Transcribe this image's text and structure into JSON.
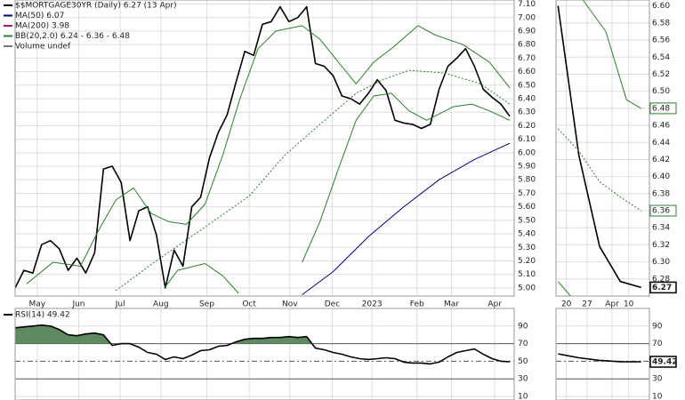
{
  "chart_data": [
    {
      "type": "line",
      "x": [
        0,
        1,
        2,
        3,
        4,
        5,
        6,
        7,
        8,
        9,
        10,
        11,
        12,
        13,
        14,
        15,
        16,
        17,
        18,
        19,
        20,
        21,
        22,
        23,
        24,
        25,
        26,
        27,
        28,
        29,
        30,
        31,
        32,
        33,
        34,
        35,
        36,
        37,
        38,
        39,
        40,
        41,
        42,
        43,
        44,
        45,
        46,
        47,
        48,
        49,
        50,
        51,
        52,
        53,
        54,
        55,
        56
      ],
      "xlim": [
        0,
        56.5
      ],
      "ylim": [
        4.94,
        7.13
      ],
      "xticks": [
        {
          "value": 2.5,
          "label": "May"
        },
        {
          "value": 7.2,
          "label": "Jun"
        },
        {
          "value": 11.9,
          "label": "Jul"
        },
        {
          "value": 16.5,
          "label": "Aug"
        },
        {
          "value": 21.7,
          "label": "Sep"
        },
        {
          "value": 26.5,
          "label": "Oct"
        },
        {
          "value": 31.1,
          "label": "Nov"
        },
        {
          "value": 35.9,
          "label": "Dec"
        },
        {
          "value": 40.4,
          "label": "2023"
        },
        {
          "value": 45.5,
          "label": "Feb"
        },
        {
          "value": 49.4,
          "label": "Mar"
        },
        {
          "value": 54.3,
          "label": "Apr"
        }
      ],
      "yticks": [
        {
          "value": 5.0,
          "label": "5.00"
        },
        {
          "value": 5.1,
          "label": "5.10"
        },
        {
          "value": 5.2,
          "label": "5.20"
        },
        {
          "value": 5.3,
          "label": "5.30"
        },
        {
          "value": 5.4,
          "label": "5.40"
        },
        {
          "value": 5.5,
          "label": "5.50"
        },
        {
          "value": 5.6,
          "label": "5.60"
        },
        {
          "value": 5.7,
          "label": "5.70"
        },
        {
          "value": 5.8,
          "label": "5.80"
        },
        {
          "value": 5.9,
          "label": "5.90"
        },
        {
          "value": 6.0,
          "label": "6.00"
        },
        {
          "value": 6.1,
          "label": "6.10"
        },
        {
          "value": 6.2,
          "label": "6.20"
        },
        {
          "value": 6.3,
          "label": "6.30"
        },
        {
          "value": 6.4,
          "label": "6.40"
        },
        {
          "value": 6.5,
          "label": "6.50"
        },
        {
          "value": 6.6,
          "label": "6.60"
        },
        {
          "value": 6.7,
          "label": "6.70"
        },
        {
          "value": 6.8,
          "label": "6.80"
        },
        {
          "value": 6.9,
          "label": "6.90"
        },
        {
          "value": 7.0,
          "label": "7.00"
        },
        {
          "value": 7.1,
          "label": "7.10"
        }
      ],
      "grid": true,
      "series": [
        {
          "name": "$$MORTGAGE30YR (Daily) 6.27 (13 Apr)",
          "color": "#000000",
          "values": [
            5.0,
            5.13,
            5.11,
            5.32,
            5.35,
            5.29,
            5.13,
            5.22,
            5.11,
            5.26,
            5.88,
            5.9,
            5.78,
            5.35,
            5.57,
            5.6,
            5.39,
            5.0,
            5.28,
            5.16,
            5.6,
            5.67,
            5.96,
            6.15,
            6.28,
            6.52,
            6.75,
            6.72,
            6.95,
            6.97,
            7.08,
            6.97,
            7.0,
            7.08,
            6.66,
            6.64,
            6.57,
            6.42,
            6.4,
            6.36,
            6.44,
            6.54,
            6.46,
            6.24,
            6.22,
            6.21,
            6.18,
            6.21,
            6.47,
            6.64,
            6.7,
            6.77,
            6.64,
            6.47,
            6.41,
            6.36,
            6.27
          ]
        },
        {
          "name": "MA(50) 6.07",
          "color": "#000080",
          "x": [
            32.5,
            36,
            40,
            44,
            48,
            52,
            56
          ],
          "values": [
            4.95,
            5.12,
            5.38,
            5.6,
            5.8,
            5.95,
            6.07
          ]
        },
        {
          "name": "MA(200) 3.98",
          "color": "#a0206a"
        },
        {
          "name": "BB(20,2.0) 6.24 - 6.36 - 6.48",
          "color": "#2f7d2f",
          "bands": {
            "upper": {
              "x": [
                1.3,
                4.3,
                7.4,
                9.4,
                11.4,
                13.4,
                15.4,
                17.4,
                19.4,
                21.5,
                23.5,
                25.5,
                27.5,
                29.5,
                32.5,
                34.5,
                36.6,
                38.6,
                40.6,
                42.6,
                45.6,
                47.6,
                50.7,
                53.7,
                56
              ],
              "values": [
                5.03,
                5.19,
                5.16,
                5.42,
                5.65,
                5.74,
                5.55,
                5.49,
                5.47,
                5.62,
                5.98,
                6.41,
                6.77,
                6.9,
                6.94,
                6.84,
                6.67,
                6.51,
                6.67,
                6.77,
                6.94,
                6.87,
                6.8,
                6.67,
                6.48
              ]
            },
            "middle": {
              "x": [
                11.4,
                16.4,
                21.5,
                26.5,
                30.5,
                34.5,
                38.6,
                41.6,
                44.6,
                48.6,
                52.7,
                56
              ],
              "values": [
                4.98,
                5.22,
                5.45,
                5.68,
                5.98,
                6.21,
                6.44,
                6.54,
                6.61,
                6.59,
                6.51,
                6.36
              ]
            },
            "lower": {
              "x": [
                16.9,
                18.4,
                21.5,
                23.5,
                25.3,
                30,
                32.5,
                34.5,
                36.6,
                38.6,
                40.6,
                42.6,
                44.6,
                46.6,
                49.6,
                51.7,
                53.7,
                56
              ],
              "values": [
                5.0,
                5.13,
                5.18,
                5.09,
                4.96,
                null,
                5.19,
                5.49,
                5.88,
                6.24,
                6.42,
                6.44,
                6.31,
                6.24,
                6.34,
                6.36,
                6.31,
                6.24
              ]
            }
          }
        },
        {
          "name": "Volume undef",
          "color": "#777777"
        }
      ]
    },
    {
      "type": "line",
      "x": [
        0,
        1,
        2,
        3,
        4
      ],
      "xlim": [
        -0.1,
        4.4
      ],
      "ylim": [
        6.26,
        6.607
      ],
      "xticks": [
        {
          "value": 0.4,
          "label": "20"
        },
        {
          "value": 1.4,
          "label": "27"
        },
        {
          "value": 2.6,
          "label": "Apr"
        },
        {
          "value": 3.4,
          "label": "10"
        }
      ],
      "yticks": [
        6.28,
        {
          "value": 6.3,
          "label": "6.30"
        },
        6.32,
        6.34,
        6.36,
        6.38,
        {
          "value": 6.4,
          "label": "6.40"
        },
        6.42,
        6.44,
        6.46,
        6.48,
        {
          "value": 6.5,
          "label": "6.50"
        },
        6.52,
        6.54,
        6.56,
        6.58,
        {
          "value": 6.6,
          "label": "6.60"
        }
      ],
      "grid": true,
      "series": [
        {
          "color": "#000000",
          "values": [
            6.6,
            6.425,
            6.318,
            6.277,
            6.27
          ]
        },
        {
          "color": "#2f7d2f",
          "bands": {
            "upper": {
              "x": [
                1.2,
                2.3,
                3.3,
                4
              ],
              "values": [
                6.607,
                6.57,
                6.49,
                6.48
              ]
            },
            "middle": {
              "x": [
                0,
                1,
                2,
                3,
                4
              ],
              "values": [
                6.456,
                6.43,
                6.394,
                6.376,
                6.36
              ]
            },
            "lower": {
              "x": [
                0,
                0.6
              ],
              "values": [
                6.277,
                6.26
              ]
            }
          }
        }
      ]
    },
    {
      "type": "line",
      "title": "RSI(14) 49.42",
      "x": [
        0,
        1,
        2,
        3,
        4,
        5,
        6,
        7,
        8,
        9,
        10,
        11,
        12,
        13,
        14,
        15,
        16,
        17,
        18,
        19,
        20,
        21,
        22,
        23,
        24,
        25,
        26,
        27,
        28,
        29,
        30,
        31,
        32,
        33,
        34,
        35,
        36,
        37,
        38,
        39,
        40,
        41,
        42,
        43,
        44,
        45,
        46,
        47,
        48,
        49,
        50,
        51,
        52,
        53,
        54,
        55,
        56
      ],
      "xlim": [
        0,
        56.5
      ],
      "ylim": [
        6,
        110
      ],
      "yticks": [
        90,
        70,
        50,
        30,
        10
      ],
      "fill_color": "#5f8a5f",
      "series": [
        {
          "color": "#000000",
          "values": [
            88,
            89,
            90,
            91,
            90,
            86,
            80,
            79,
            81,
            82,
            80,
            68,
            70,
            70,
            66,
            60,
            58,
            52,
            55,
            53,
            57,
            62,
            63,
            67,
            68,
            72,
            75,
            76,
            76,
            77,
            77,
            78,
            77,
            78,
            65,
            63,
            60,
            58,
            55,
            53,
            52,
            53,
            54,
            53,
            49,
            48,
            48,
            47,
            49,
            55,
            60,
            62,
            64,
            58,
            53,
            50,
            49.42
          ]
        }
      ]
    },
    {
      "type": "line",
      "x": [
        0,
        1,
        2,
        3,
        4
      ],
      "xlim": [
        -0.1,
        4.4
      ],
      "ylim": [
        6,
        110
      ],
      "yticks": [
        90,
        70,
        50,
        30,
        10
      ],
      "series": [
        {
          "color": "#000000",
          "values": [
            58.4,
            54,
            51,
            49.5,
            49.42
          ]
        }
      ]
    }
  ]
}
